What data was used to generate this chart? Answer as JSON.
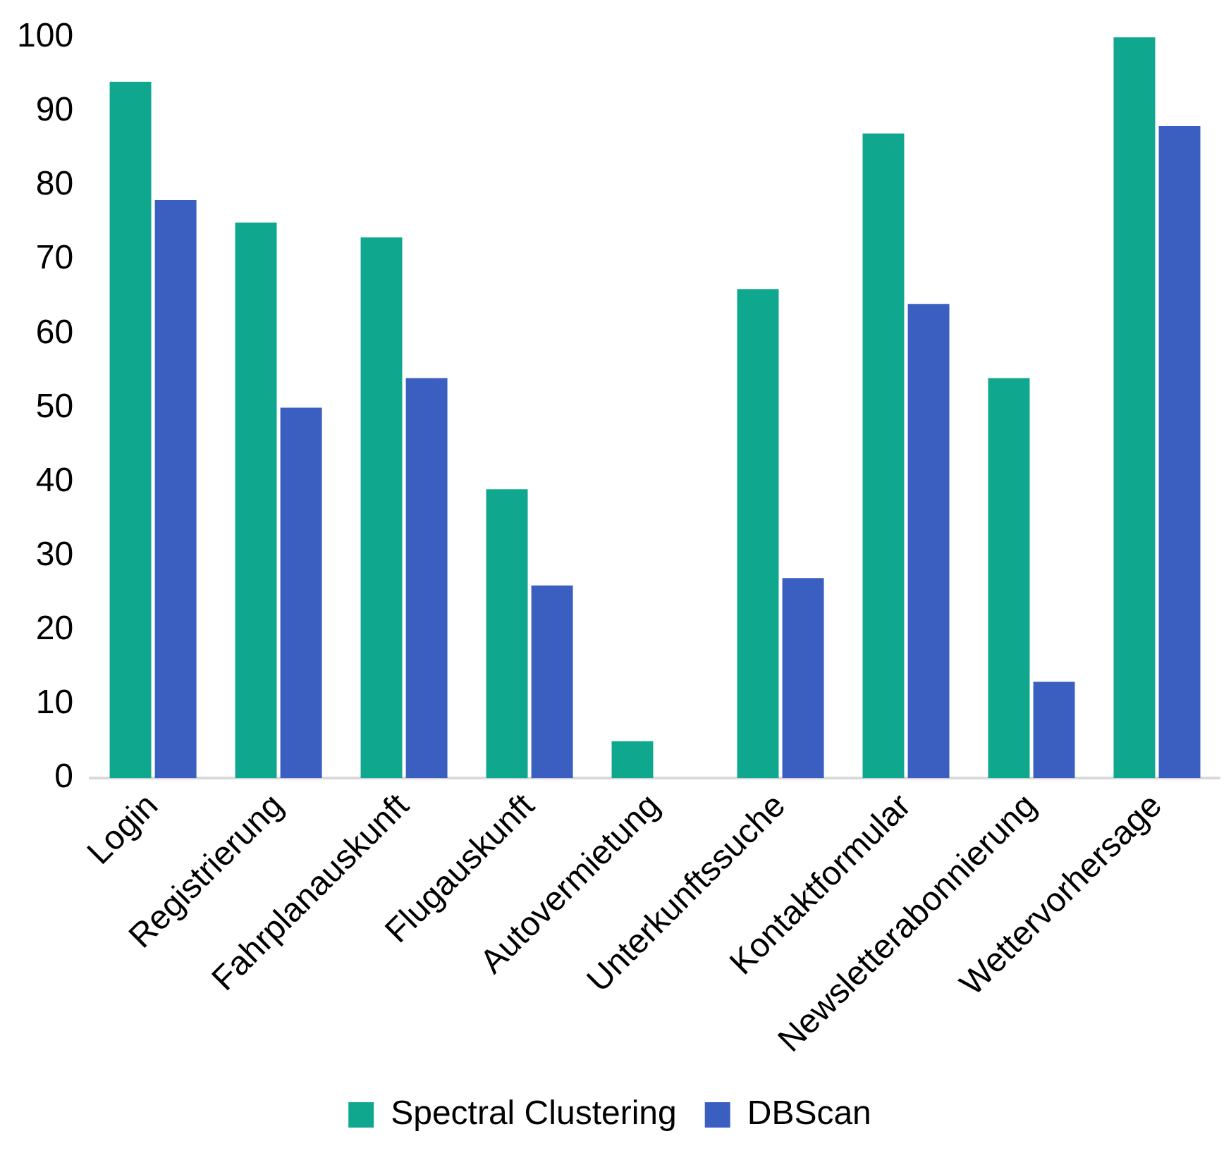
{
  "chart_data": {
    "type": "bar",
    "categories": [
      "Login",
      "Registrierung",
      "Fahrplanauskunft",
      "Flugauskunft",
      "Autovermietung",
      "Unterkunftssuche",
      "Kontaktformular",
      "Newsletterabonnierung",
      "Wettervorhersage"
    ],
    "series": [
      {
        "name": "Spectral Clustering",
        "color": "#0fa88f",
        "values": [
          94,
          75,
          73,
          39,
          5,
          66,
          87,
          54,
          100
        ]
      },
      {
        "name": "DBScan",
        "color": "#3a5fc0",
        "values": [
          78,
          50,
          54,
          26,
          0,
          27,
          64,
          13,
          88
        ]
      }
    ],
    "ylim": [
      0,
      100
    ],
    "yticks": [
      0,
      10,
      20,
      30,
      40,
      50,
      60,
      70,
      80,
      90,
      100
    ],
    "grid": false,
    "legend": "bottom"
  }
}
